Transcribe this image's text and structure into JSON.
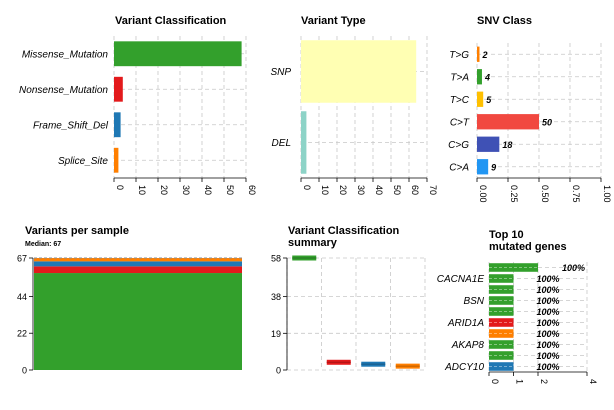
{
  "chart_data": [
    {
      "panel": "variant_classification",
      "type": "bar",
      "orientation": "horizontal",
      "title": "Variant Classification",
      "categories": [
        "Missense_Mutation",
        "Nonsense_Mutation",
        "Frame_Shift_Del",
        "Splice_Site"
      ],
      "values": [
        58,
        4,
        3,
        2
      ],
      "colors": [
        "#33a02c",
        "#e31a1c",
        "#1f78b4",
        "#ff7f00"
      ],
      "xlim": [
        0,
        60
      ],
      "xticks": [
        "0",
        "10",
        "20",
        "30",
        "40",
        "50",
        "60"
      ],
      "grid": true
    },
    {
      "panel": "variant_type",
      "type": "bar",
      "orientation": "horizontal",
      "title": "Variant Type",
      "categories": [
        "SNP",
        "DEL"
      ],
      "values": [
        64,
        3
      ],
      "colors": [
        "#ffffb3",
        "#8dd3c7"
      ],
      "xlim": [
        0,
        70
      ],
      "xticks": [
        "0",
        "10",
        "20",
        "30",
        "40",
        "50",
        "60",
        "70"
      ],
      "grid": true
    },
    {
      "panel": "snv_class",
      "type": "bar",
      "orientation": "horizontal",
      "title": "SNV Class",
      "categories": [
        "T>G",
        "T>A",
        "T>C",
        "C>T",
        "C>G",
        "C>A"
      ],
      "values": [
        0.02,
        0.04,
        0.05,
        0.5,
        0.18,
        0.09
      ],
      "labels": [
        "2",
        "4",
        "5",
        "50",
        "18",
        "9"
      ],
      "colors": [
        "#ff7f00",
        "#33a02c",
        "#ffc000",
        "#f14840",
        "#3f51b5",
        "#2196f3"
      ],
      "xlim": [
        0,
        1.0
      ],
      "xticks": [
        "0.00",
        "0.25",
        "0.50",
        "0.75",
        "1.00"
      ],
      "grid": true
    },
    {
      "panel": "variants_per_sample",
      "type": "bar",
      "stacked": true,
      "title": "Variants per sample",
      "subtitle": "Median: 67",
      "yticks": [
        "0",
        "22",
        "44",
        "67"
      ],
      "ylim": [
        0,
        67
      ],
      "median": 67,
      "series": [
        {
          "values": [
            58
          ],
          "color": "#33a02c"
        },
        {
          "values": [
            4
          ],
          "color": "#e31a1c"
        },
        {
          "values": [
            3
          ],
          "color": "#1f78b4"
        },
        {
          "values": [
            2
          ],
          "color": "#ff7f00"
        }
      ]
    },
    {
      "panel": "variant_classification_summary",
      "type": "box",
      "title": "Variant Classification\nsummary",
      "values": [
        58,
        4,
        3,
        2
      ],
      "colors": [
        "#33a02c",
        "#e31a1c",
        "#1f78b4",
        "#ff7f00"
      ],
      "yticks": [
        "0",
        "19",
        "38",
        "58"
      ],
      "ylim": [
        0,
        58
      ],
      "grid": true
    },
    {
      "panel": "top10_mutated_genes",
      "type": "bar",
      "orientation": "horizontal",
      "stacked": true,
      "title": "Top 10\nmutated genes",
      "genes": [
        "",
        "CACNA1E",
        "",
        "BSN",
        "",
        "ARID1A",
        "",
        "AKAP8",
        "",
        "ADCY10"
      ],
      "percent_labels": [
        "100%",
        "100%",
        "100%",
        "100%",
        "100%",
        "100%",
        "100%",
        "100%",
        "100%",
        "100%"
      ],
      "segments": [
        [
          {
            "value": 2,
            "color": "#33a02c"
          }
        ],
        [
          {
            "value": 1,
            "color": "#33a02c"
          }
        ],
        [
          {
            "value": 1,
            "color": "#33a02c"
          }
        ],
        [
          {
            "value": 1,
            "color": "#33a02c"
          }
        ],
        [
          {
            "value": 1,
            "color": "#33a02c"
          }
        ],
        [
          {
            "value": 1,
            "color": "#e31a1c"
          }
        ],
        [
          {
            "value": 1,
            "color": "#ff7f00"
          }
        ],
        [
          {
            "value": 1,
            "color": "#33a02c"
          }
        ],
        [
          {
            "value": 1,
            "color": "#33a02c"
          }
        ],
        [
          {
            "value": 1,
            "color": "#1f78b4"
          }
        ]
      ],
      "xlim": [
        0,
        4
      ],
      "xticks": [
        "0",
        "1",
        "2",
        "4"
      ],
      "grid": true
    }
  ]
}
